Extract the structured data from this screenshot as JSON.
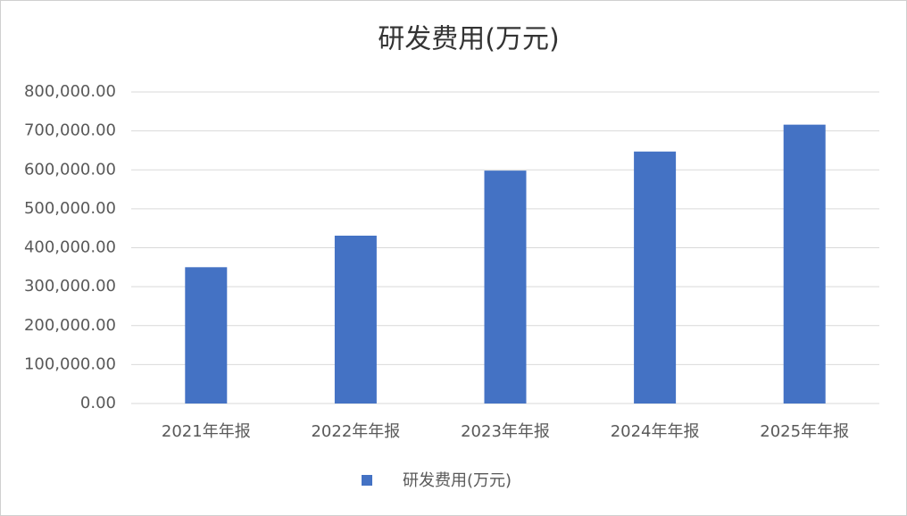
{
  "chart_data": {
    "type": "bar",
    "title": "研发费用(万元)",
    "categories": [
      "2021年年报",
      "2022年年报",
      "2023年年报",
      "2024年年报",
      "2025年年报"
    ],
    "series": [
      {
        "name": "研发费用(万元)",
        "color": "#4472c4",
        "values": [
          350000,
          431000,
          598000,
          647000,
          716000
        ]
      }
    ],
    "ylim": [
      0,
      800000
    ],
    "yticks": [
      {
        "value": 0,
        "label": "0.00"
      },
      {
        "value": 100000,
        "label": "100,000.00"
      },
      {
        "value": 200000,
        "label": "200,000.00"
      },
      {
        "value": 300000,
        "label": "300,000.00"
      },
      {
        "value": 400000,
        "label": "400,000.00"
      },
      {
        "value": 500000,
        "label": "500,000.00"
      },
      {
        "value": 600000,
        "label": "600,000.00"
      },
      {
        "value": 700000,
        "label": "700,000.00"
      },
      {
        "value": 800000,
        "label": "800,000.00"
      }
    ],
    "grid": true,
    "legend": "bottom"
  }
}
